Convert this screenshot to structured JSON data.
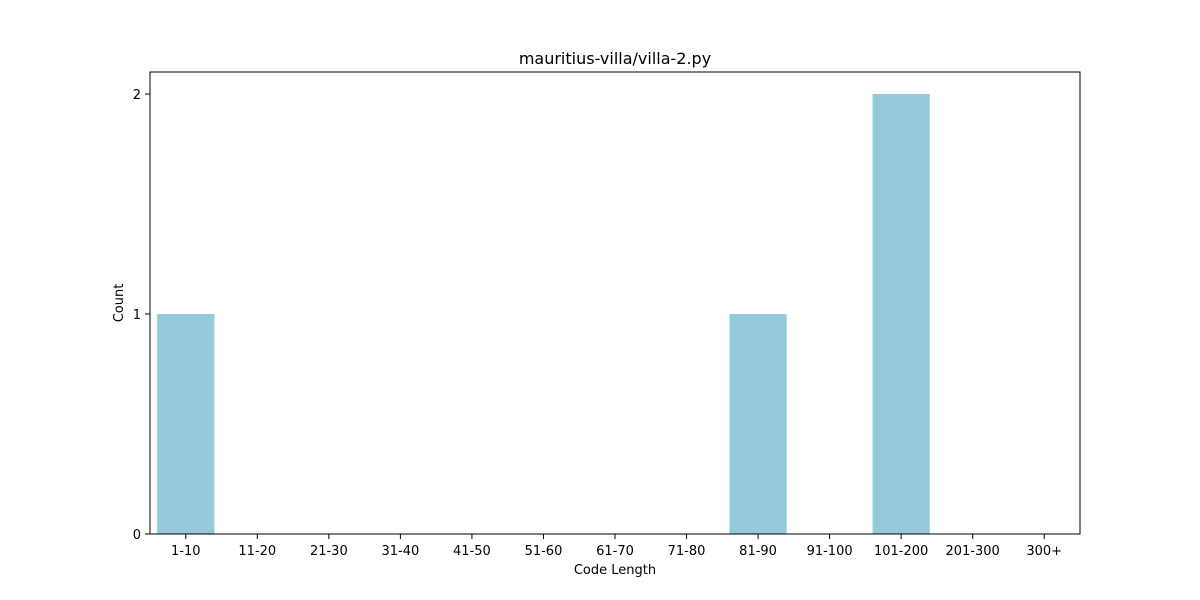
{
  "colors": {
    "bar": "#96c9dc",
    "axis": "#000000",
    "background": "#ffffff"
  },
  "chart_data": {
    "type": "bar",
    "title": "mauritius-villa/villa-2.py",
    "xlabel": "Code Length",
    "ylabel": "Count",
    "categories": [
      "1-10",
      "11-20",
      "21-30",
      "31-40",
      "41-50",
      "51-60",
      "61-70",
      "71-80",
      "81-90",
      "91-100",
      "101-200",
      "201-300",
      "300+"
    ],
    "values": [
      1,
      0,
      0,
      0,
      0,
      0,
      0,
      0,
      1,
      0,
      2,
      0,
      0
    ],
    "ylim": [
      0,
      2.1
    ],
    "yticks": [
      0,
      1,
      2
    ],
    "grid": false,
    "legend": "none"
  }
}
